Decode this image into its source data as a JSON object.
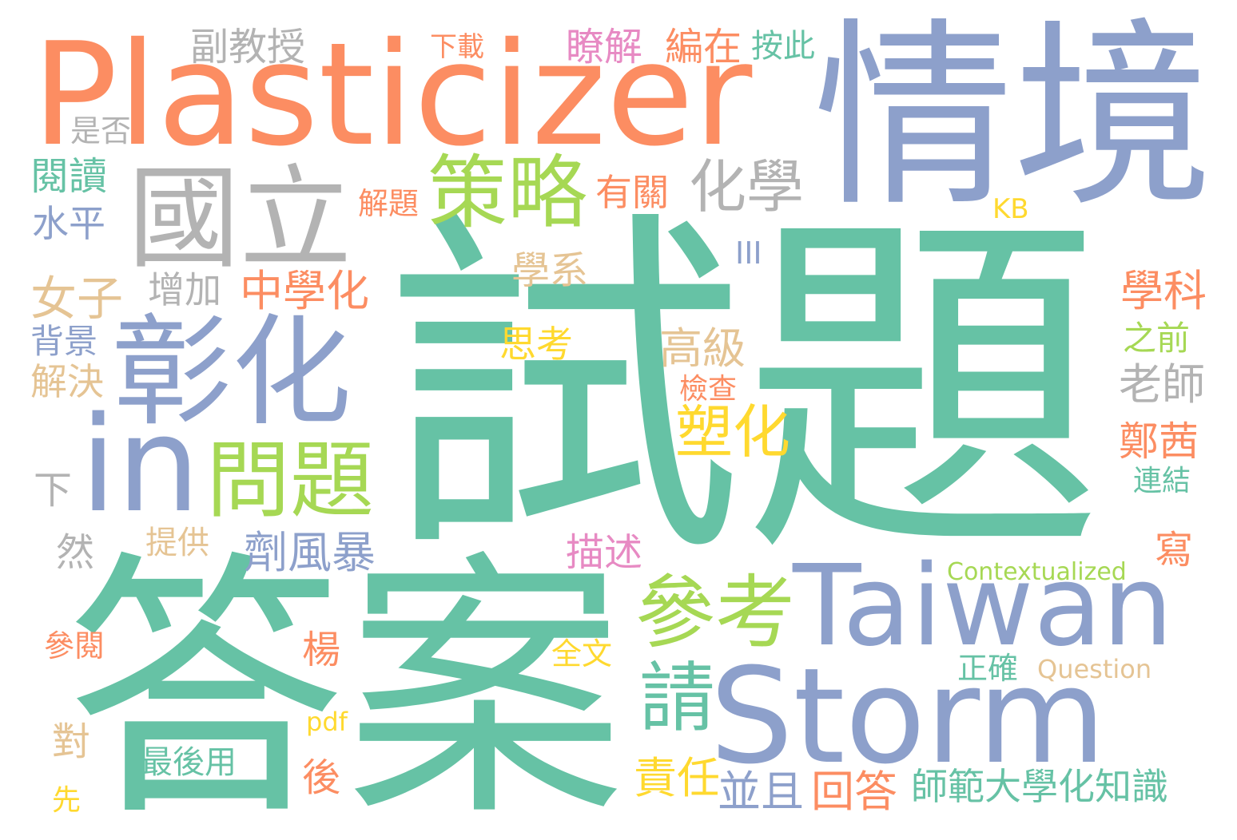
{
  "palette": {
    "teal": "#66c2a5",
    "orange": "#fc8d62",
    "blue": "#8da0cb",
    "pink": "#e78ac3",
    "green": "#a6d854",
    "yellow": "#ffd92f",
    "tan": "#e5c494",
    "gray": "#b3b3b3"
  },
  "words": {
    "shiti": "試題",
    "daan": "答案",
    "qingjing": "情境",
    "plasticizer": "Plasticizer",
    "storm": "Storm",
    "taiwan": "Taiwan",
    "in": "in",
    "guoli": "國立",
    "zhanghua": "彰化",
    "celue": "策略",
    "wenti": "問題",
    "cankao": "參考",
    "huaxue": "化學",
    "qing": "請",
    "suhua": "塑化",
    "jifengbao": "劑風暴",
    "fujiaoshou": "副教授",
    "xiazai": "下載",
    "liaojie": "瞭解",
    "bianzai": "編在",
    "anci": "按此",
    "shifou": "是否",
    "yuedu": "閱讀",
    "jieti": "解題",
    "youguan": "有關",
    "kb": "KB",
    "shuiping": "水平",
    "iii": "III",
    "xuexi": "學系",
    "zengjia": "增加",
    "zhongxuehua": "中學化",
    "nvzi": "女子",
    "xueke": "學科",
    "beijing": "背景",
    "sikao": "思考",
    "gaoji": "高級",
    "zhiqian": "之前",
    "jiejue": "解決",
    "jiancha": "檢查",
    "laoshi": "老師",
    "zhengqian": "鄭茜",
    "xia": "下",
    "lianjie": "連結",
    "ran": "然",
    "tigong": "提供",
    "miaoshu": "描述",
    "xie": "寫",
    "contextualized": "Contextualized",
    "canyue": "參閱",
    "yang": "楊",
    "quanwen": "全文",
    "zhengque": "正確",
    "question": "Question",
    "pdf": "pdf",
    "dui": "對",
    "zuihouyong": "最後用",
    "hou": "後",
    "zeren": "責任",
    "bingqie": "並且",
    "huida": "回答",
    "shifan": "師範大學化知識",
    "xian": "先"
  }
}
